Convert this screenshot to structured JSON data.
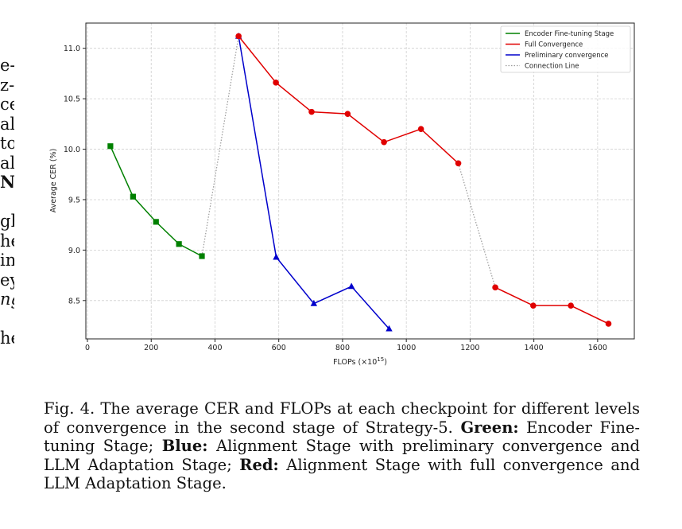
{
  "left_fragments": [
    {
      "text": "e-",
      "style": "normal"
    },
    {
      "text": "z-",
      "style": "normal"
    },
    {
      "text": "ce",
      "style": "normal"
    },
    {
      "text": "al",
      "style": "normal"
    },
    {
      "text": "to",
      "style": "normal"
    },
    {
      "text": "al",
      "style": "normal"
    },
    {
      "text": "N:",
      "style": "bold"
    },
    {
      "text": "",
      "style": "gap"
    },
    {
      "text": "gh",
      "style": "normal"
    },
    {
      "text": "he",
      "style": "normal"
    },
    {
      "text": "in",
      "style": "normal"
    },
    {
      "text": "ey",
      "style": "normal"
    },
    {
      "text": "ng",
      "style": "italic"
    },
    {
      "text": "",
      "style": "gap"
    },
    {
      "text": "he",
      "style": "normal"
    }
  ],
  "caption": {
    "prefix": "Fig. 4.  The average CER and FLOPs at each checkpoint for different levels of convergence in the second stage of Strategy-5. ",
    "green_label": "Green:",
    "green_text": " Encoder Fine-tuning Stage; ",
    "blue_label": "Blue:",
    "blue_text": " Alignment Stage with preliminary convergence and LLM Adaptation Stage; ",
    "red_label": "Red:",
    "red_text": " Alignment Stage with full convergence and LLM Adaptation Stage."
  },
  "chart_data": {
    "type": "line",
    "xlabel": "FLOPs (×10",
    "xlabel_sup": "15",
    "xlabel_suffix": ")",
    "ylabel": "Average CER (%)",
    "xlim": [
      -5,
      1715
    ],
    "ylim": [
      8.12,
      11.25
    ],
    "xticks": [
      0,
      200,
      400,
      600,
      800,
      1000,
      1200,
      1400,
      1600
    ],
    "yticks": [
      8.5,
      9.0,
      9.5,
      10.0,
      10.5,
      11.0
    ],
    "ytick_labels": [
      "8.5",
      "9.0",
      "9.5",
      "10.0",
      "10.5",
      "11.0"
    ],
    "grid": true,
    "legend_position": "top-right",
    "series": [
      {
        "name": "Encoder Fine-tuning Stage",
        "color": "#008000",
        "marker": "square",
        "style": "solid",
        "x": [
          72,
          143,
          215,
          287,
          359
        ],
        "y": [
          10.03,
          9.53,
          9.28,
          9.06,
          8.94
        ]
      },
      {
        "name": "Full Convergence",
        "color": "#e00000",
        "marker": "circle",
        "style": "solid",
        "segments": [
          {
            "x": [
              474,
              591,
              703,
              816,
              930,
              1046,
              1163
            ],
            "y": [
              11.12,
              10.66,
              10.37,
              10.35,
              10.07,
              10.2,
              9.86
            ]
          },
          {
            "x": [
              1279,
              1398,
              1516,
              1634
            ],
            "y": [
              8.63,
              8.45,
              8.45,
              8.27
            ]
          }
        ]
      },
      {
        "name": "Preliminary convergence",
        "color": "#0000cc",
        "marker": "triangle",
        "style": "solid",
        "x": [
          474,
          592,
          710,
          828,
          946
        ],
        "y": [
          11.12,
          8.93,
          8.47,
          8.64,
          8.22
        ]
      },
      {
        "name": "Connection Line",
        "color": "#999999",
        "marker": "none",
        "style": "dotted",
        "segments": [
          {
            "x": [
              359,
              474
            ],
            "y": [
              8.94,
              11.12
            ]
          },
          {
            "x": [
              474,
              592
            ],
            "y": [
              11.12,
              8.93
            ]
          },
          {
            "x": [
              1163,
              1279
            ],
            "y": [
              9.86,
              8.63
            ]
          }
        ]
      }
    ]
  }
}
